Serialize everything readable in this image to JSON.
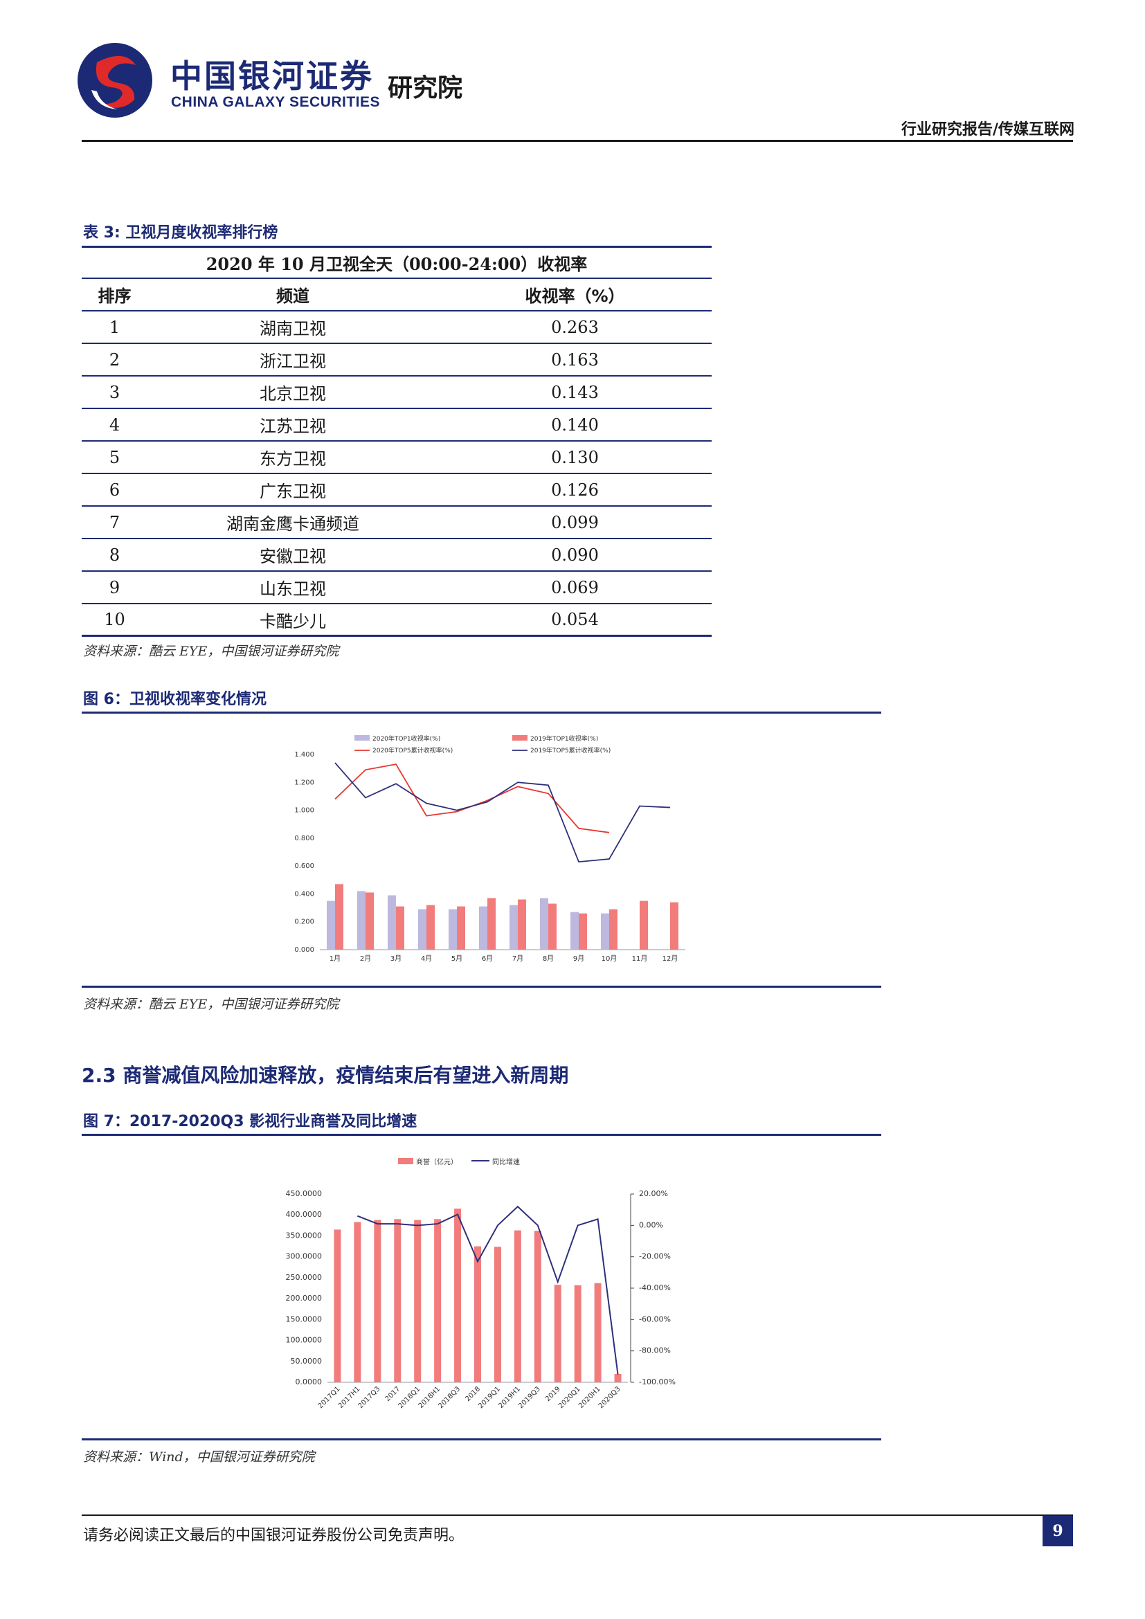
{
  "header": {
    "brand_cn": "中国银河证券",
    "brand_en": "CHINA GALAXY SECURITIES",
    "brand_institute": "研究院",
    "report_type": "行业研究报告/传媒互联网"
  },
  "table3": {
    "caption": "表 3: 卫视月度收视率排行榜",
    "title": "2020 年 10 月卫视全天（00:00-24:00）收视率",
    "headers": [
      "排序",
      "频道",
      "收视率（%）"
    ],
    "rows": [
      {
        "rank": "1",
        "channel": "湖南卫视",
        "rating": "0.263"
      },
      {
        "rank": "2",
        "channel": "浙江卫视",
        "rating": "0.163"
      },
      {
        "rank": "3",
        "channel": "北京卫视",
        "rating": "0.143"
      },
      {
        "rank": "4",
        "channel": "江苏卫视",
        "rating": "0.140"
      },
      {
        "rank": "5",
        "channel": "东方卫视",
        "rating": "0.130"
      },
      {
        "rank": "6",
        "channel": "广东卫视",
        "rating": "0.126"
      },
      {
        "rank": "7",
        "channel": "湖南金鹰卡通频道",
        "rating": "0.099"
      },
      {
        "rank": "8",
        "channel": "安徽卫视",
        "rating": "0.090"
      },
      {
        "rank": "9",
        "channel": "山东卫视",
        "rating": "0.069"
      },
      {
        "rank": "10",
        "channel": "卡酷少儿",
        "rating": "0.054"
      }
    ],
    "source": "资料来源：酷云 EYE，中国银河证券研究院"
  },
  "figure6": {
    "caption": "图 6：卫视收视率变化情况",
    "source": "资料来源：酷云 EYE，中国银河证券研究院"
  },
  "section": {
    "title": "2.3 商誉减值风险加速释放，疫情结束后有望进入新周期"
  },
  "figure7": {
    "caption": "图 7：2017-2020Q3 影视行业商誉及同比增速",
    "source": "资料来源：Wind，中国银河证券研究院"
  },
  "footer": {
    "disclaimer": "请务必阅读正文最后的中国银河证券股份公司免责声明。",
    "page_number": "9"
  },
  "colors": {
    "navy": "#1c2a75",
    "bar_2020": "#bdb8dd",
    "bar_2019": "#f27c7c",
    "line_2020": "#e8362f",
    "line_2019": "#2e2f7a",
    "goodwill_bar": "#f27c7c"
  },
  "chart_data": [
    {
      "type": "bar",
      "categories": [
        "1月",
        "2月",
        "3月",
        "4月",
        "5月",
        "6月",
        "7月",
        "8月",
        "9月",
        "10月",
        "11月",
        "12月"
      ],
      "ylim": [
        0,
        1.4
      ],
      "yticks": [
        "0.000",
        "0.200",
        "0.400",
        "0.600",
        "0.800",
        "1.000",
        "1.200",
        "1.400"
      ],
      "legend_position": "top",
      "series": [
        {
          "name": "2020年TOP1收视率(%)",
          "kind": "bar",
          "values": [
            0.35,
            0.42,
            0.39,
            0.29,
            0.29,
            0.31,
            0.32,
            0.37,
            0.27,
            0.26,
            null,
            null
          ]
        },
        {
          "name": "2019年TOP1收视率(%)",
          "kind": "bar",
          "values": [
            0.47,
            0.41,
            0.31,
            0.32,
            0.31,
            0.37,
            0.36,
            0.33,
            0.26,
            0.29,
            0.35,
            0.34
          ]
        },
        {
          "name": "2020年TOP5累计收视率(%)",
          "kind": "line",
          "values": [
            1.08,
            1.29,
            1.33,
            0.96,
            0.99,
            1.07,
            1.17,
            1.12,
            0.87,
            0.84,
            null,
            null
          ]
        },
        {
          "name": "2019年TOP5累计收视率(%)",
          "kind": "line",
          "values": [
            1.34,
            1.09,
            1.19,
            1.05,
            1.0,
            1.06,
            1.2,
            1.18,
            0.63,
            0.65,
            1.03,
            1.02
          ]
        }
      ]
    },
    {
      "type": "bar",
      "categories": [
        "2017Q1",
        "2017H1",
        "2017Q3",
        "2017",
        "2018Q1",
        "2018H1",
        "2018Q3",
        "2018",
        "2019Q1",
        "2019H1",
        "2019Q3",
        "2019",
        "2020Q1",
        "2020H1",
        "2020Q3"
      ],
      "ylim": [
        0,
        450
      ],
      "yticks": [
        "0.0000",
        "50.0000",
        "100.0000",
        "150.0000",
        "200.0000",
        "250.0000",
        "300.0000",
        "350.0000",
        "400.0000",
        "450.0000"
      ],
      "y2lim": [
        -100,
        20
      ],
      "y2ticks": [
        "-100.00%",
        "-80.00%",
        "-60.00%",
        "-40.00%",
        "-20.00%",
        "0.00%",
        "20.00%"
      ],
      "legend_position": "top",
      "series": [
        {
          "name": "商誉（亿元）",
          "kind": "bar",
          "axis": "left",
          "values": [
            365,
            383,
            388,
            390,
            388,
            390,
            415,
            325,
            324,
            363,
            362,
            233,
            232,
            237,
            20
          ]
        },
        {
          "name": "同比增速",
          "kind": "line",
          "axis": "right",
          "values": [
            null,
            6,
            1,
            1,
            0,
            1,
            7,
            -23,
            0,
            12,
            0,
            -36,
            0,
            4,
            -95
          ]
        }
      ]
    }
  ]
}
